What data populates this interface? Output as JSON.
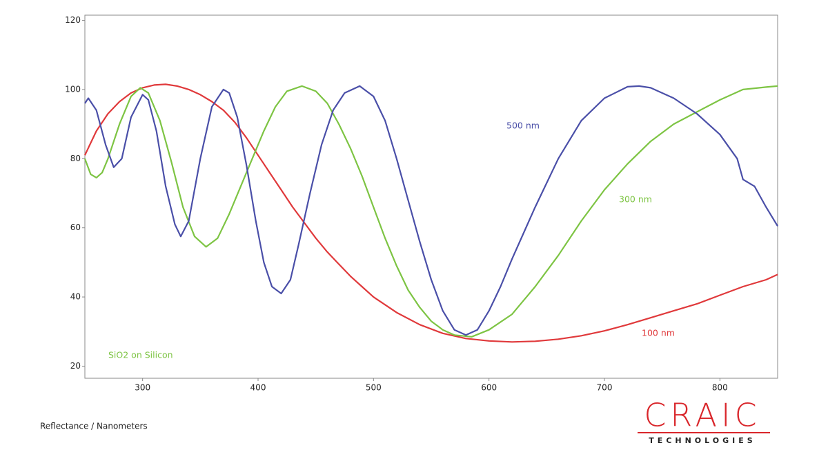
{
  "chart_data": {
    "type": "line",
    "footer": "Reflectance / Nanometers",
    "annotation": "SiO2 on Silicon",
    "annotation_color": "#7dc443",
    "logo": {
      "name": "CRAIC",
      "tagline": "TECHNOLOGIES",
      "color": "#d9262b"
    },
    "xlim": [
      250,
      850
    ],
    "xticks": [
      300,
      400,
      500,
      600,
      700,
      800
    ],
    "ylim": [
      16.5,
      121.5
    ],
    "yticks": [
      20,
      40,
      60,
      80,
      100,
      120
    ],
    "series": [
      {
        "name": "100 nm",
        "color": "#e0393b",
        "x": [
          250,
          260,
          270,
          280,
          290,
          300,
          310,
          320,
          330,
          340,
          350,
          360,
          370,
          380,
          390,
          400,
          410,
          420,
          430,
          440,
          450,
          460,
          470,
          480,
          490,
          500,
          520,
          540,
          560,
          580,
          600,
          620,
          640,
          660,
          680,
          700,
          720,
          740,
          760,
          780,
          800,
          820,
          840,
          850
        ],
        "values": [
          81,
          88,
          93,
          96.5,
          99,
          100.5,
          101.3,
          101.5,
          101,
          100,
          98.5,
          96.5,
          94,
          90.5,
          86,
          81,
          76,
          71,
          66,
          61.5,
          57,
          53,
          49.5,
          46,
          43,
          40,
          35.5,
          32,
          29.5,
          28,
          27.3,
          27,
          27.2,
          27.8,
          28.8,
          30.2,
          32,
          34,
          36,
          38,
          40.5,
          43,
          45,
          46.5
        ]
      },
      {
        "name": "300 nm",
        "color": "#7dc443",
        "x": [
          250,
          255,
          260,
          265,
          270,
          280,
          290,
          298,
          305,
          315,
          325,
          335,
          345,
          355,
          365,
          375,
          385,
          395,
          405,
          415,
          425,
          438,
          450,
          460,
          470,
          480,
          490,
          500,
          510,
          520,
          530,
          540,
          550,
          560,
          570,
          585,
          600,
          620,
          640,
          660,
          680,
          700,
          720,
          740,
          760,
          780,
          800,
          820,
          840,
          850
        ],
        "values": [
          80,
          75.5,
          74.5,
          76,
          80,
          90,
          98,
          100.5,
          99,
          91,
          79,
          66,
          57.5,
          54.5,
          57,
          64,
          72,
          80,
          88,
          95,
          99.5,
          101,
          99.5,
          96,
          90,
          83,
          75,
          66,
          57,
          49,
          42,
          37,
          33,
          30.5,
          29,
          28.5,
          30.5,
          35,
          43,
          52,
          62,
          71,
          78.5,
          85,
          90,
          93.5,
          97,
          100,
          100.7,
          101
        ]
      },
      {
        "name": "500 nm",
        "color": "#4a4fa8",
        "x": [
          250,
          253,
          260,
          268,
          275,
          282,
          290,
          300,
          305,
          312,
          320,
          328,
          333,
          340,
          350,
          360,
          370,
          375,
          382,
          390,
          398,
          405,
          412,
          420,
          428,
          435,
          445,
          455,
          465,
          475,
          488,
          500,
          510,
          520,
          530,
          540,
          550,
          560,
          570,
          580,
          590,
          600,
          610,
          620,
          640,
          660,
          680,
          700,
          720,
          730,
          740,
          760,
          780,
          800,
          815,
          820,
          830,
          840,
          850
        ],
        "values": [
          96,
          97.5,
          94,
          84,
          77.5,
          80,
          92,
          98.5,
          97,
          88,
          72,
          61,
          57.5,
          62,
          80,
          95,
          100,
          99,
          92,
          78,
          62,
          50,
          43,
          41,
          45,
          55,
          70,
          84,
          94,
          99,
          101,
          98,
          91,
          80,
          68,
          56,
          45,
          36,
          30.5,
          29,
          30.5,
          36,
          43,
          51,
          66,
          80,
          91,
          97.5,
          100.8,
          101,
          100.5,
          97.5,
          93,
          87,
          80,
          74,
          72,
          66,
          60.5
        ]
      }
    ]
  }
}
